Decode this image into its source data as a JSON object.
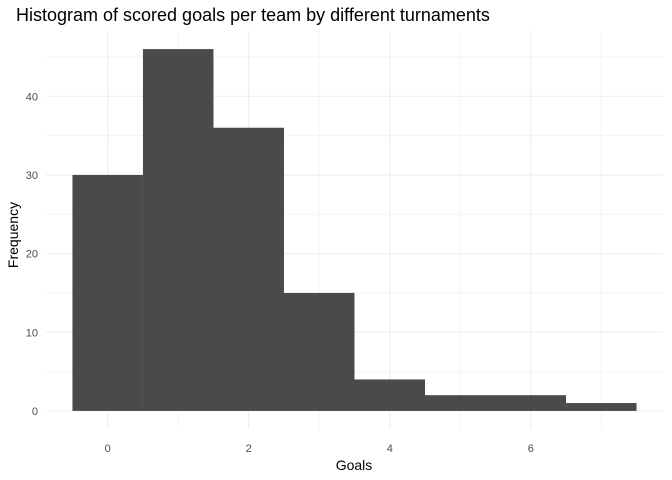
{
  "chart_data": {
    "type": "bar",
    "subtype": "histogram",
    "title": "Histogram of scored goals per team by different turnaments",
    "xlabel": "Goals",
    "ylabel": "Frequency",
    "bins": [
      {
        "x_start": -0.5,
        "x_end": 0.5,
        "count": 30
      },
      {
        "x_start": 0.5,
        "x_end": 1.5,
        "count": 46
      },
      {
        "x_start": 1.5,
        "x_end": 2.5,
        "count": 36
      },
      {
        "x_start": 2.5,
        "x_end": 3.5,
        "count": 15
      },
      {
        "x_start": 3.5,
        "x_end": 4.5,
        "count": 4
      },
      {
        "x_start": 4.5,
        "x_end": 5.5,
        "count": 2
      },
      {
        "x_start": 5.5,
        "x_end": 6.5,
        "count": 2
      },
      {
        "x_start": 6.5,
        "x_end": 7.5,
        "count": 1
      }
    ],
    "xlim": [
      -0.875,
      7.875
    ],
    "ylim": [
      -2.3,
      48.3
    ],
    "x_major_ticks": [
      0,
      2,
      4,
      6
    ],
    "x_minor_ticks": [
      1,
      3,
      5,
      7
    ],
    "y_major_ticks": [
      0,
      10,
      20,
      30,
      40
    ],
    "y_minor_ticks": [
      5,
      15,
      25,
      35,
      45
    ],
    "x_tick_labels": [
      "0",
      "2",
      "4",
      "6"
    ],
    "y_tick_labels": [
      "0",
      "10",
      "20",
      "30",
      "40"
    ],
    "grid": true,
    "legend": "none",
    "colors": {
      "bar_fill": "#4a4a4a",
      "grid_major": "#ebebeb",
      "grid_minor": "#f4f4f4",
      "background": "#ffffff"
    }
  }
}
